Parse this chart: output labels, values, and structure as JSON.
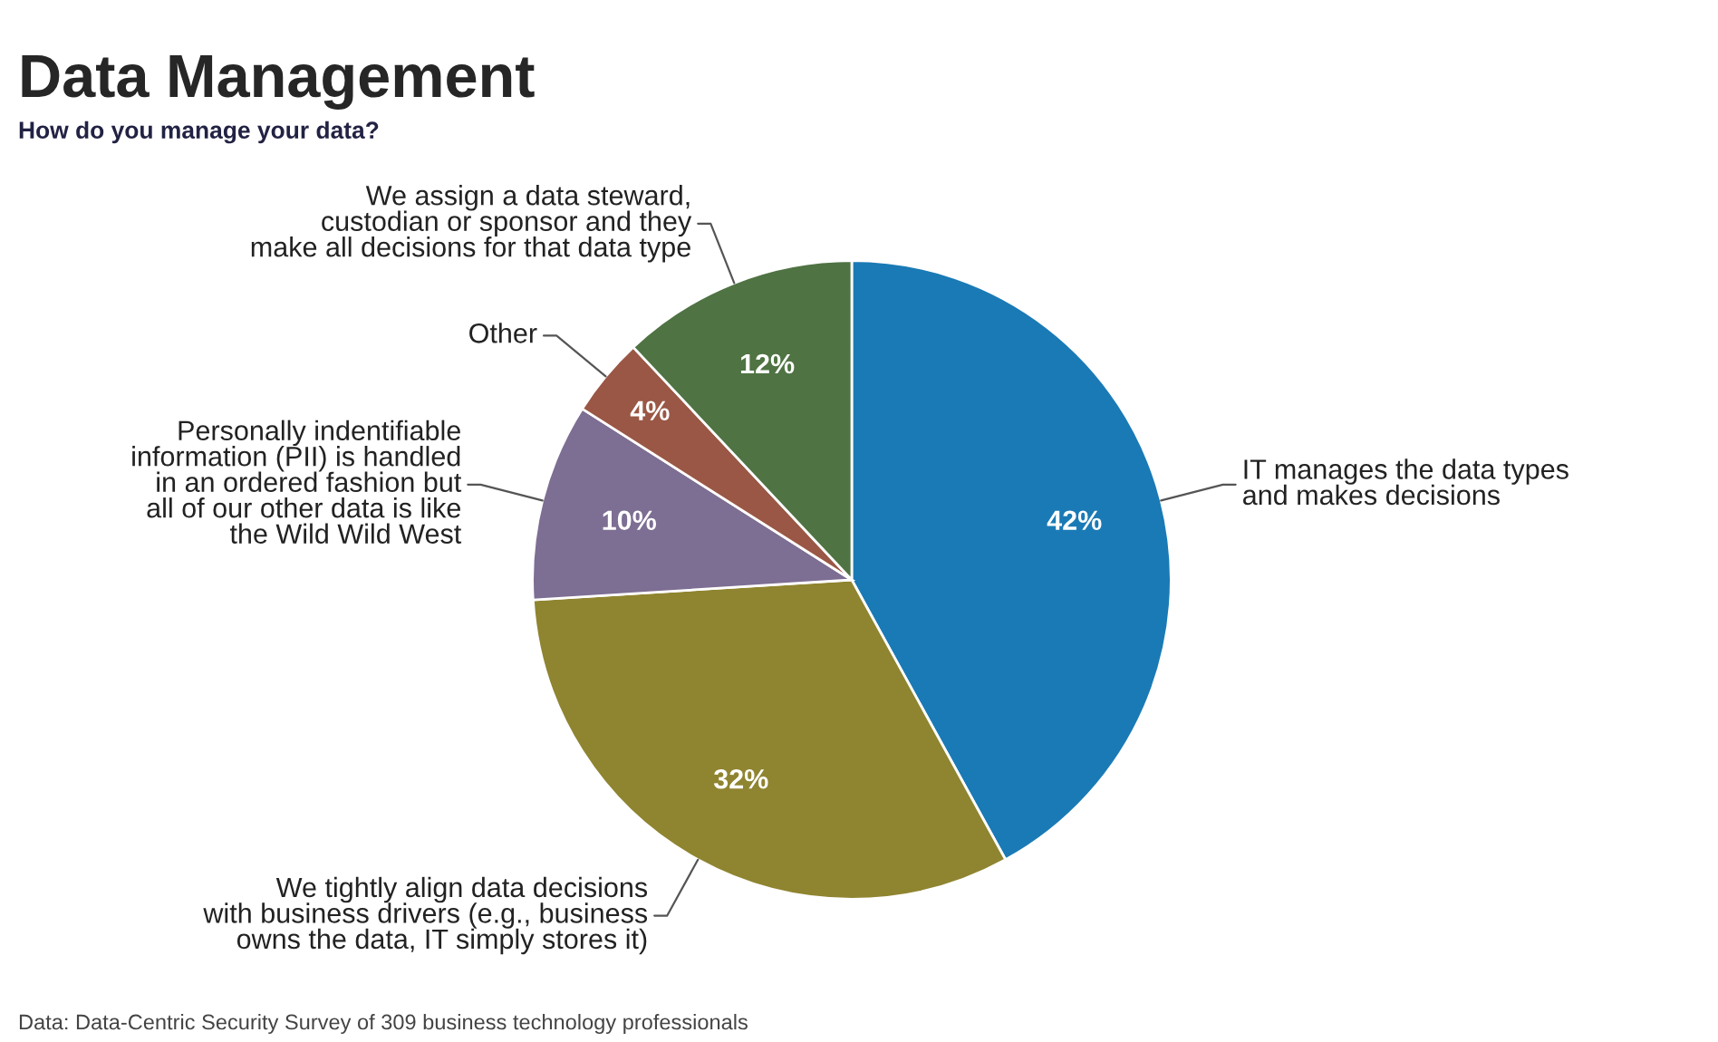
{
  "chart_data": {
    "type": "pie",
    "title": "Data Management",
    "subtitle": "How do you manage your data?",
    "categories": [
      "IT manages the data types\nand makes decisions",
      "We tightly align data decisions\nwith business drivers (e.g., business\nowns the data, IT simply stores it)",
      "Personally indentifiable\ninformation (PII) is handled\nin an ordered fashion but\nall of our other data is like\nthe Wild Wild West",
      "Other",
      "We assign a data steward,\ncustodian or sponsor and they\nmake all decisions for that data type"
    ],
    "values": [
      42,
      32,
      10,
      4,
      12
    ],
    "value_labels": [
      "42%",
      "32%",
      "10%",
      "4%",
      "12%"
    ],
    "colors": [
      "#1a7ab5",
      "#8f8430",
      "#7d6e93",
      "#9a5745",
      "#4f7343"
    ],
    "annotations": [
      "Data: Data-Centric Security Survey of 309 business technology professionals"
    ]
  }
}
